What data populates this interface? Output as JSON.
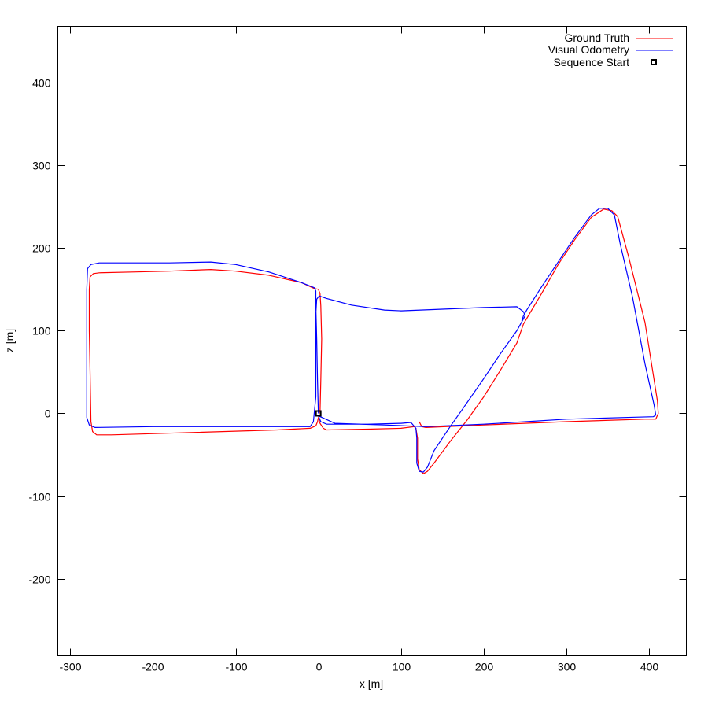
{
  "chart_data": {
    "type": "line",
    "title": "",
    "xlabel": "x [m]",
    "ylabel": "z [m]",
    "xlim": [
      -315,
      445
    ],
    "ylim": [
      -293,
      468
    ],
    "xticks": [
      -300,
      -200,
      -100,
      0,
      100,
      200,
      300,
      400
    ],
    "yticks": [
      -200,
      -100,
      0,
      100,
      200,
      300,
      400
    ],
    "xtick_labels": [
      "-300",
      "-200",
      "-100",
      "0",
      "100",
      "200",
      "300",
      "400"
    ],
    "ytick_labels": [
      "-200",
      "-100",
      "0",
      "100",
      "200",
      "300",
      "400"
    ],
    "grid": false,
    "legend_position": "top-right",
    "series": [
      {
        "name": "Ground Truth",
        "color": "#ff0000",
        "points": [
          [
            2,
            0
          ],
          [
            3,
            40
          ],
          [
            4,
            90
          ],
          [
            3,
            130
          ],
          [
            2,
            145
          ],
          [
            0,
            150
          ],
          [
            -5,
            151
          ],
          [
            -20,
            158
          ],
          [
            -60,
            167
          ],
          [
            -100,
            172
          ],
          [
            -130,
            174
          ],
          [
            -180,
            172
          ],
          [
            -220,
            171
          ],
          [
            -265,
            170
          ],
          [
            -272,
            169
          ],
          [
            -276,
            165
          ],
          [
            -277,
            150
          ],
          [
            -277,
            100
          ],
          [
            -276,
            50
          ],
          [
            -275,
            -10
          ],
          [
            -273,
            -22
          ],
          [
            -268,
            -26
          ],
          [
            -250,
            -26
          ],
          [
            -150,
            -23
          ],
          [
            -50,
            -20
          ],
          [
            -10,
            -18
          ],
          [
            -3,
            -15
          ],
          [
            -1,
            -10
          ],
          [
            0,
            -5
          ],
          [
            2,
            -12
          ],
          [
            6,
            -18
          ],
          [
            10,
            -20
          ],
          [
            60,
            -19
          ],
          [
            100,
            -18
          ],
          [
            116,
            -16
          ],
          [
            118,
            -18
          ],
          [
            120,
            -30
          ],
          [
            120,
            -55
          ],
          [
            122,
            -68
          ],
          [
            127,
            -73
          ],
          [
            132,
            -70
          ],
          [
            140,
            -60
          ],
          [
            160,
            -33
          ],
          [
            180,
            -8
          ],
          [
            200,
            20
          ],
          [
            220,
            52
          ],
          [
            240,
            85
          ],
          [
            248,
            108
          ],
          [
            255,
            120
          ],
          [
            270,
            145
          ],
          [
            290,
            180
          ],
          [
            310,
            210
          ],
          [
            330,
            237
          ],
          [
            345,
            247
          ],
          [
            355,
            245
          ],
          [
            362,
            238
          ],
          [
            375,
            190
          ],
          [
            395,
            110
          ],
          [
            410,
            15
          ],
          [
            411,
            0
          ],
          [
            408,
            -7
          ],
          [
            395,
            -7
          ],
          [
            300,
            -10
          ],
          [
            200,
            -14
          ],
          [
            130,
            -17
          ],
          [
            125,
            -16
          ],
          [
            122,
            -10
          ]
        ]
      },
      {
        "name": "Visual Odometry",
        "color": "#0000ff",
        "points": [
          [
            0,
            0
          ],
          [
            -1,
            40
          ],
          [
            -2,
            90
          ],
          [
            -3,
            130
          ],
          [
            -3,
            148
          ],
          [
            -5,
            152
          ],
          [
            -20,
            158
          ],
          [
            -60,
            171
          ],
          [
            -100,
            180
          ],
          [
            -130,
            183
          ],
          [
            -180,
            182
          ],
          [
            -220,
            182
          ],
          [
            -265,
            182
          ],
          [
            -275,
            180
          ],
          [
            -279,
            175
          ],
          [
            -280,
            150
          ],
          [
            -280,
            100
          ],
          [
            -280,
            50
          ],
          [
            -280,
            -5
          ],
          [
            -277,
            -14
          ],
          [
            -270,
            -17
          ],
          [
            -200,
            -16
          ],
          [
            -100,
            -16
          ],
          [
            -10,
            -16
          ],
          [
            -6,
            -10
          ],
          [
            -5,
            0
          ],
          [
            -3,
            20
          ],
          [
            -3,
            70
          ],
          [
            -3,
            120
          ],
          [
            -2,
            138
          ],
          [
            1,
            142
          ],
          [
            10,
            139
          ],
          [
            40,
            131
          ],
          [
            80,
            125
          ],
          [
            100,
            124
          ],
          [
            150,
            126
          ],
          [
            200,
            128
          ],
          [
            240,
            129
          ],
          [
            248,
            123
          ],
          [
            250,
            118
          ],
          [
            240,
            100
          ],
          [
            220,
            72
          ],
          [
            200,
            42
          ],
          [
            175,
            6
          ],
          [
            160,
            -15
          ],
          [
            140,
            -45
          ],
          [
            132,
            -65
          ],
          [
            127,
            -71
          ],
          [
            122,
            -70
          ],
          [
            119,
            -60
          ],
          [
            119,
            -30
          ],
          [
            118,
            -18
          ],
          [
            112,
            -11
          ],
          [
            100,
            -12
          ],
          [
            60,
            -13
          ],
          [
            10,
            -13
          ],
          [
            3,
            -10
          ],
          [
            0,
            -3
          ],
          [
            20,
            -12
          ],
          [
            80,
            -14
          ],
          [
            130,
            -16
          ],
          [
            200,
            -13
          ],
          [
            300,
            -7
          ],
          [
            370,
            -5
          ],
          [
            405,
            -4
          ],
          [
            408,
            -2
          ],
          [
            406,
            10
          ],
          [
            395,
            60
          ],
          [
            380,
            140
          ],
          [
            365,
            205
          ],
          [
            358,
            240
          ],
          [
            350,
            248
          ],
          [
            340,
            248
          ],
          [
            330,
            240
          ],
          [
            310,
            213
          ],
          [
            290,
            183
          ],
          [
            270,
            153
          ],
          [
            252,
            125
          ],
          [
            248,
            118
          ],
          [
            246,
            112
          ]
        ]
      }
    ],
    "markers": [
      {
        "name": "Sequence Start",
        "type": "hollow-square",
        "color": "#000000",
        "x": 0,
        "y": 0
      }
    ]
  }
}
